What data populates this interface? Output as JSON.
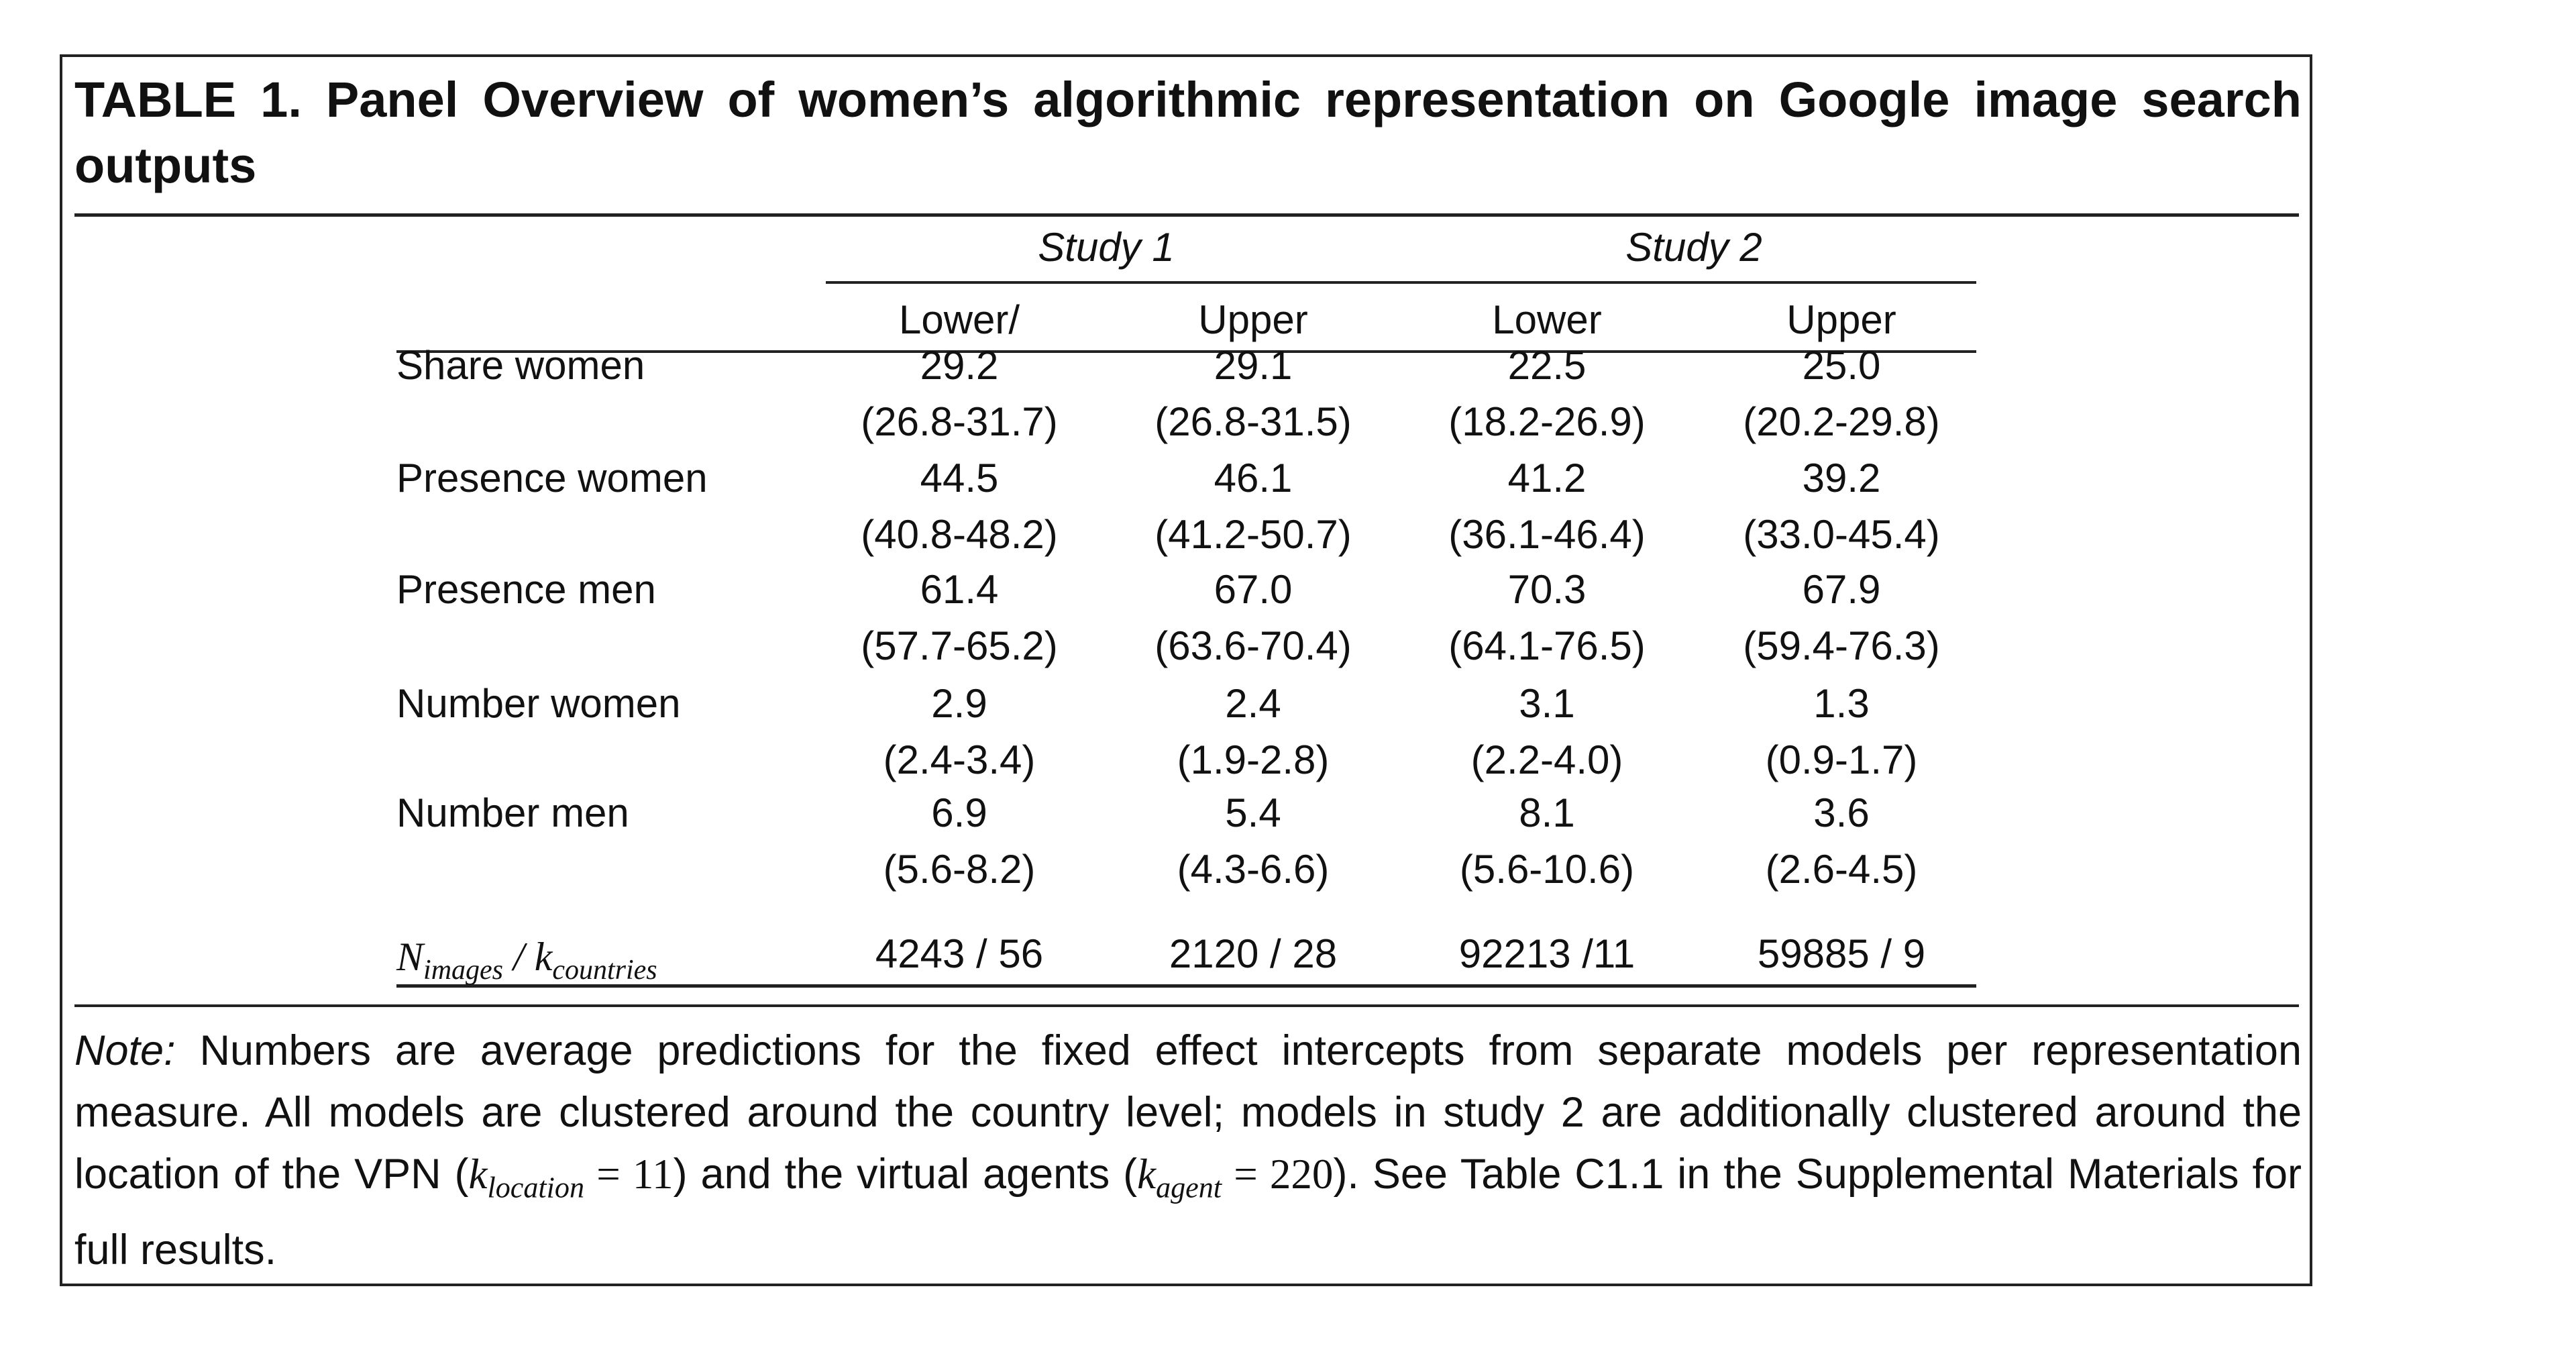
{
  "title": "TABLE 1. Panel Overview of women’s algorithmic representation on Google image search outputs",
  "studies": [
    "Study 1",
    "Study 2"
  ],
  "columns": [
    "Lower/",
    "Upper",
    "Lower",
    "Upper"
  ],
  "rows": [
    {
      "label": "Share women",
      "values": [
        "29.2",
        "29.1",
        "22.5",
        "25.0"
      ],
      "ci": [
        "(26.8-31.7)",
        "(26.8-31.5)",
        "(18.2-26.9)",
        "(20.2-29.8)"
      ]
    },
    {
      "label": "Presence women",
      "values": [
        "44.5",
        "46.1",
        "41.2",
        "39.2"
      ],
      "ci": [
        "(40.8-48.2)",
        "(41.2-50.7)",
        "(36.1-46.4)",
        "(33.0-45.4)"
      ]
    },
    {
      "label": "Presence men",
      "values": [
        "61.4",
        "67.0",
        "70.3",
        "67.9"
      ],
      "ci": [
        "(57.7-65.2)",
        "(63.6-70.4)",
        "(64.1-76.5)",
        "(59.4-76.3)"
      ]
    },
    {
      "label": "Number women",
      "values": [
        "2.9",
        "2.4",
        "3.1",
        "1.3"
      ],
      "ci": [
        "(2.4-3.4)",
        "(1.9-2.8)",
        "(2.2-4.0)",
        "(0.9-1.7)"
      ]
    },
    {
      "label": "Number men",
      "values": [
        "6.9",
        "5.4",
        "8.1",
        "3.6"
      ],
      "ci": [
        "(5.6-8.2)",
        "(4.3-6.6)",
        "(5.6-10.6)",
        "(2.6-4.5)"
      ]
    }
  ],
  "n_row": {
    "label_N": "N",
    "label_N_sub": "images",
    "label_sep": " / ",
    "label_k": "k",
    "label_k_sub": "countries",
    "values": [
      "4243 / 56",
      "2120 / 28",
      "92213 /11",
      "59885 / 9"
    ]
  },
  "note": {
    "prefix": "Note:",
    "text1": " Numbers are average predictions for the fixed effect intercepts from separate models per representation measure. All models are clustered around the country level; models in study 2 are additionally clustered around the location of the VPN (",
    "k1": "k",
    "k1_sub": "location",
    "k1_eq": " = 11",
    "text2": ") and the virtual agents (",
    "k2": "k",
    "k2_sub": "agent",
    "k2_eq": " = 220",
    "text3": "). See Table C1.1 in the Supplemental Materials for full results."
  }
}
